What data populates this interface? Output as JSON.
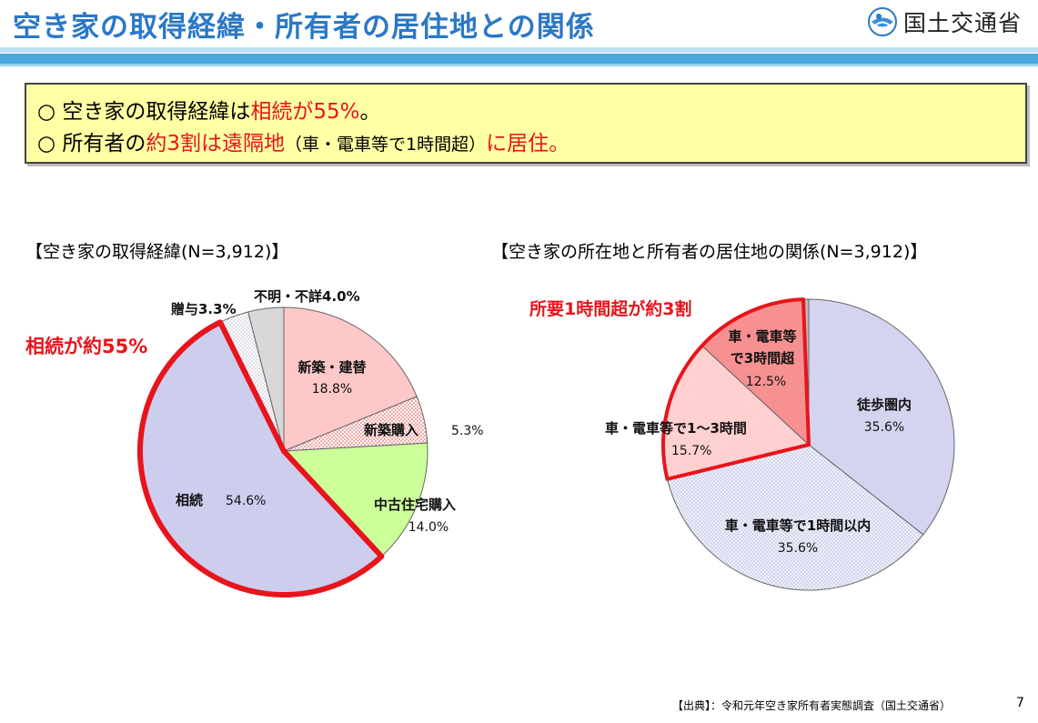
{
  "header": {
    "title": "空き家の取得経緯・所有者の居住地との関係",
    "ministry": "国土交通省"
  },
  "summary": {
    "line1": {
      "bullet": "○",
      "a": "空き家の取得経緯は",
      "b": "相続が55%",
      "c": "。"
    },
    "line2": {
      "bullet": "○",
      "a": "所有者の",
      "b": "約3割は遠隔地",
      "c": "（車・電車等で1時間超）",
      "d": "に居住。"
    }
  },
  "colors": {
    "accent_red": "#e8141c",
    "title_blue": "#2b78c6"
  },
  "chart_data": [
    {
      "type": "pie",
      "title": "【空き家の取得経緯(N=3,912)】",
      "callout": "相続が約55%",
      "slices": [
        {
          "label": "新築・建替",
          "value": 18.8,
          "value_label": "18.8%",
          "color": "#ffc8c8"
        },
        {
          "label": "新築購入",
          "value": 5.3,
          "value_label": "5.3%",
          "color": "#ffe2e2"
        },
        {
          "label": "中古住宅購入",
          "value": 14.0,
          "value_label": "14.0%",
          "color": "#ccff99"
        },
        {
          "label": "相続",
          "value": 54.6,
          "value_label": "54.6%",
          "color": "#cdcdee"
        },
        {
          "label": "贈与3.3%",
          "value": 3.3,
          "value_label": "",
          "color": "#eeeef8"
        },
        {
          "label": "不明・不詳4.0%",
          "value": 4.0,
          "value_label": "",
          "color": "#d8d8d8"
        }
      ]
    },
    {
      "type": "pie",
      "title": "【空き家の所在地と所有者の居住地の関係(N=3,912)】",
      "callout": "所要1時間超が約3割",
      "slices": [
        {
          "label": "徒歩圏内",
          "value": 35.6,
          "value_label": "35.6%",
          "color": "#d4d4f0"
        },
        {
          "label": "車・電車等で1時間以内",
          "value": 35.6,
          "value_label": "35.6%",
          "color": "#eef0fa"
        },
        {
          "label": "車・電車等で1～3時間",
          "value": 15.7,
          "value_label": "15.7%",
          "color": "#ffd0d0"
        },
        {
          "label": "車・電車等で3時間超",
          "value": 12.5,
          "value_label": "12.5%",
          "color": "#f79090"
        },
        {
          "label": "",
          "value": 0.6,
          "value_label": "",
          "color": "#bbbbbb"
        }
      ]
    }
  ],
  "footer": {
    "source": "【出典】：令和元年空き家所有者実態調査（国土交通省）",
    "page": "7"
  }
}
